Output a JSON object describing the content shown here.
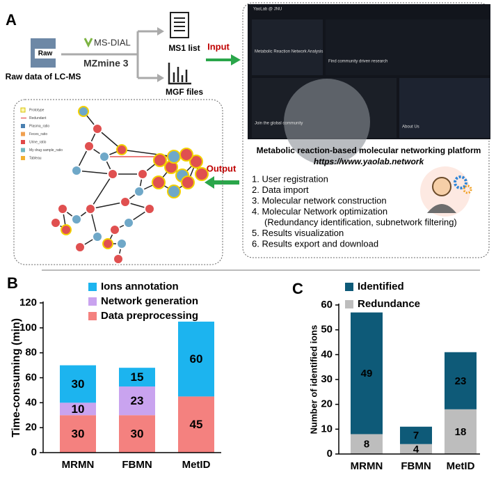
{
  "panel_a": {
    "label": "A",
    "raw_icon": "Raw",
    "source": "Raw data of LC-MS",
    "tools": [
      "MS-DIAL",
      "MZmine 3"
    ],
    "outputs": [
      "MS1 list",
      "MGF files"
    ],
    "input": "Input",
    "output": "Output",
    "screenshot": {
      "brand": "YaoLab @ JNU",
      "card1": "Metabolic Reaction Network Analysis",
      "card2": "Find community driven research",
      "card3": "Join the global community",
      "card4": "About Us"
    },
    "network_legend": [
      "Prototype",
      "Redundant",
      "Plasma_ratio",
      "Feces_ratio",
      "Urine_ratio",
      "My drug sample_ratio",
      "Tableau"
    ],
    "platform_title": "Metabolic reaction-based molecular networking platform",
    "url": "https://www.yaolab.network",
    "steps": [
      "1.  User registration",
      "2.  Data import",
      "3.  Molecular network construction",
      "4.  Molecular Network optimization",
      "(Redundancy identification, subnetwork filtering)",
      "5.  Results visualization",
      "6.  Results export and download"
    ]
  },
  "chart_data": [
    {
      "type": "stacked_bar",
      "label": "B",
      "ylabel": "Time-consuming (min)",
      "categories": [
        "MRMN",
        "FBMN",
        "MetID"
      ],
      "series": [
        {
          "name": "Data preprocessing",
          "color": "#f4817f",
          "values": [
            30,
            30,
            45
          ]
        },
        {
          "name": "Network generation",
          "color": "#c9a3ef",
          "values": [
            10,
            23,
            null
          ]
        },
        {
          "name": "Ions annotation",
          "color": "#1cb4ef",
          "values": [
            30,
            15,
            60
          ]
        }
      ],
      "ylim": [
        0,
        120
      ],
      "yticks": [
        0,
        20,
        40,
        60,
        80,
        100,
        120
      ]
    },
    {
      "type": "stacked_bar",
      "label": "C",
      "ylabel": "Number of identified ions",
      "categories": [
        "MRMN",
        "FBMN",
        "MetID"
      ],
      "series": [
        {
          "name": "Redundance",
          "color": "#bdbdbd",
          "values": [
            8,
            4,
            18
          ]
        },
        {
          "name": "Identified",
          "color": "#0e5a78",
          "values": [
            49,
            7,
            23
          ]
        }
      ],
      "ylim": [
        0,
        60
      ],
      "yticks": [
        0,
        10,
        20,
        30,
        40,
        50,
        60
      ]
    }
  ]
}
